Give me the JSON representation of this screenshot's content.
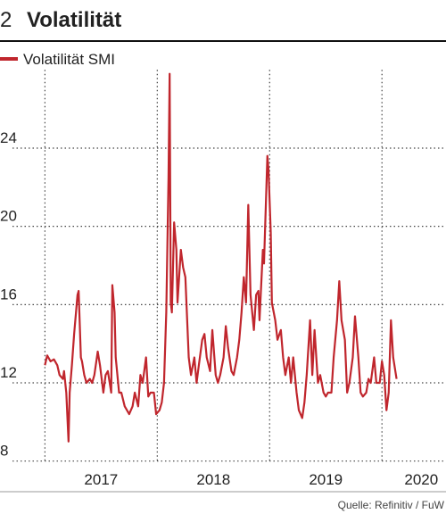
{
  "chart_data": {
    "type": "line",
    "number": "2",
    "title": "Volatilität",
    "source": "Quelle: Refinitiv / FuW",
    "x": [
      2017.0,
      2017.02,
      2017.05,
      2017.08,
      2017.11,
      2017.13,
      2017.16,
      2017.17,
      2017.19,
      2017.21,
      2017.22,
      2017.24,
      2017.26,
      2017.29,
      2017.3,
      2017.32,
      2017.33,
      2017.35,
      2017.37,
      2017.4,
      2017.42,
      2017.44,
      2017.47,
      2017.49,
      2017.52,
      2017.54,
      2017.56,
      2017.59,
      2017.6,
      2017.62,
      2017.63,
      2017.66,
      2017.68,
      2017.71,
      2017.73,
      2017.75,
      2017.78,
      2017.8,
      2017.83,
      2017.85,
      2017.87,
      2017.9,
      2017.92,
      2017.94,
      2017.97,
      2017.99,
      2018.02,
      2018.04,
      2018.06,
      2018.08,
      2018.1,
      2018.11,
      2018.12,
      2018.13,
      2018.15,
      2018.17,
      2018.18,
      2018.21,
      2018.23,
      2018.25,
      2018.28,
      2018.3,
      2018.33,
      2018.35,
      2018.37,
      2018.4,
      2018.42,
      2018.44,
      2018.47,
      2018.49,
      2018.52,
      2018.54,
      2018.56,
      2018.59,
      2018.61,
      2018.63,
      2018.66,
      2018.68,
      2018.71,
      2018.73,
      2018.75,
      2018.77,
      2018.79,
      2018.81,
      2018.83,
      2018.86,
      2018.88,
      2018.9,
      2018.91,
      2018.94,
      2018.95,
      2018.98,
      2018.99,
      2019.01,
      2019.02,
      2019.05,
      2019.07,
      2019.1,
      2019.12,
      2019.14,
      2019.17,
      2019.19,
      2019.21,
      2019.24,
      2019.26,
      2019.29,
      2019.31,
      2019.33,
      2019.36,
      2019.38,
      2019.4,
      2019.43,
      2019.45,
      2019.48,
      2019.5,
      2019.52,
      2019.55,
      2019.57,
      2019.6,
      2019.62,
      2019.64,
      2019.67,
      2019.69,
      2019.71,
      2019.74,
      2019.76,
      2019.79,
      2019.81,
      2019.83,
      2019.86,
      2019.88,
      2019.9,
      2019.93,
      2019.95,
      2019.98,
      2020.0,
      2020.02,
      2020.04,
      2020.06,
      2020.08,
      2020.1,
      2020.13
    ],
    "series": [
      {
        "name": "Volatilität SMI",
        "color": "#c0262d",
        "values": [
          12.9,
          13.4,
          13.1,
          13.2,
          12.9,
          12.4,
          12.2,
          12.6,
          11.5,
          9.0,
          11.5,
          12.9,
          14.5,
          16.5,
          16.7,
          13.3,
          13.1,
          12.4,
          12.0,
          12.2,
          12.0,
          12.4,
          13.6,
          12.9,
          11.5,
          12.4,
          12.6,
          11.5,
          17.0,
          15.6,
          13.3,
          11.5,
          11.5,
          10.8,
          10.6,
          10.4,
          10.8,
          11.5,
          10.8,
          12.4,
          12.0,
          13.3,
          11.3,
          11.5,
          11.5,
          10.4,
          10.6,
          11.0,
          12.0,
          15.6,
          22.5,
          27.8,
          16.1,
          15.6,
          20.2,
          18.8,
          16.1,
          18.8,
          17.9,
          17.4,
          13.3,
          12.4,
          13.3,
          12.0,
          12.9,
          14.2,
          14.5,
          13.3,
          12.6,
          14.7,
          12.4,
          12.0,
          12.4,
          13.3,
          14.9,
          13.8,
          12.6,
          12.4,
          13.3,
          14.2,
          15.6,
          17.4,
          16.1,
          21.1,
          16.5,
          14.7,
          16.5,
          16.7,
          15.2,
          18.8,
          18.1,
          23.6,
          22.9,
          19.7,
          16.1,
          15.2,
          14.2,
          14.7,
          13.3,
          12.4,
          13.3,
          12.0,
          13.3,
          11.5,
          10.6,
          10.2,
          11.0,
          12.4,
          15.2,
          12.4,
          14.7,
          12.0,
          12.4,
          11.5,
          11.3,
          11.5,
          11.5,
          13.3,
          15.2,
          17.2,
          15.2,
          14.2,
          11.5,
          12.0,
          13.3,
          15.4,
          13.3,
          11.5,
          11.3,
          11.5,
          12.2,
          12.0,
          13.3,
          12.0,
          12.0,
          13.1,
          12.4,
          10.6,
          11.5,
          15.2,
          13.3,
          12.2
        ]
      }
    ],
    "xlim": [
      2016.6,
      2020.57
    ],
    "xgrid": [
      2017,
      2018,
      2019,
      2020
    ],
    "xticks": [
      {
        "value": 2017.5,
        "label": "2017"
      },
      {
        "value": 2018.5,
        "label": "2018"
      },
      {
        "value": 2019.5,
        "label": "2019"
      },
      {
        "value": 2020.35,
        "label": "2020"
      }
    ],
    "ylim": [
      8,
      28
    ],
    "yticks": [
      8,
      12,
      16,
      20,
      24
    ],
    "grid": true
  }
}
